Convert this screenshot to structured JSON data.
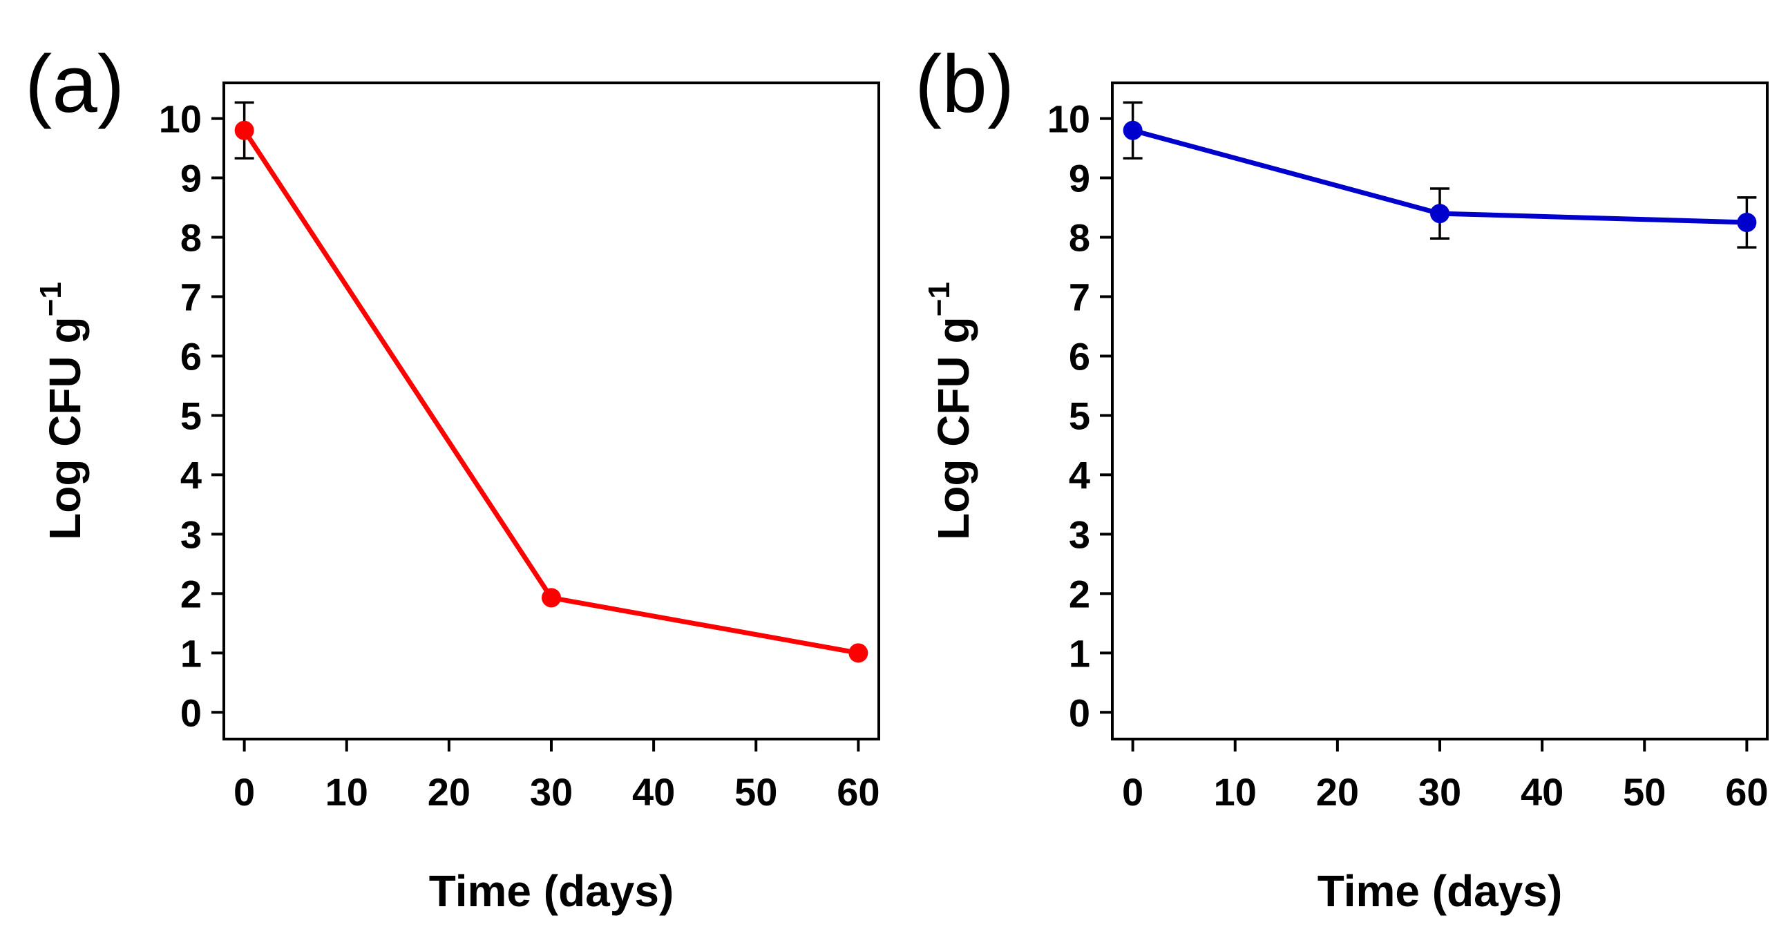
{
  "chart_data": [
    {
      "type": "line",
      "panel_label": "(a)",
      "xlabel": "Time (days)",
      "ylabel_main": "Log CFU g",
      "ylabel_sup": "−1",
      "xlim": [
        -2,
        62
      ],
      "ylim": [
        -0.45,
        10.6
      ],
      "xticks": [
        0,
        10,
        20,
        30,
        40,
        50,
        60
      ],
      "yticks": [
        0,
        1,
        2,
        3,
        4,
        5,
        6,
        7,
        8,
        9,
        10
      ],
      "xtick_labels": [
        "0",
        "10",
        "20",
        "30",
        "40",
        "50",
        "60"
      ],
      "ytick_labels": [
        "0",
        "1",
        "2",
        "3",
        "4",
        "5",
        "6",
        "7",
        "8",
        "9",
        "10"
      ],
      "color": "#ff0000",
      "series": [
        {
          "name": "",
          "x": [
            0,
            30,
            60
          ],
          "y": [
            9.8,
            1.93,
            1.0
          ],
          "err": [
            0.47,
            0,
            0
          ]
        }
      ]
    },
    {
      "type": "line",
      "panel_label": "(b)",
      "xlabel": "Time (days)",
      "ylabel_main": "Log CFU g",
      "ylabel_sup": "−1",
      "xlim": [
        -2,
        62
      ],
      "ylim": [
        -0.45,
        10.6
      ],
      "xticks": [
        0,
        10,
        20,
        30,
        40,
        50,
        60
      ],
      "yticks": [
        0,
        1,
        2,
        3,
        4,
        5,
        6,
        7,
        8,
        9,
        10
      ],
      "xtick_labels": [
        "0",
        "10",
        "20",
        "30",
        "40",
        "50",
        "60"
      ],
      "ytick_labels": [
        "0",
        "1",
        "2",
        "3",
        "4",
        "5",
        "6",
        "7",
        "8",
        "9",
        "10"
      ],
      "color": "#0000cc",
      "series": [
        {
          "name": "",
          "x": [
            0,
            30,
            60
          ],
          "y": [
            9.8,
            8.4,
            8.25
          ],
          "err": [
            0.47,
            0.42,
            0.42
          ]
        }
      ]
    }
  ]
}
